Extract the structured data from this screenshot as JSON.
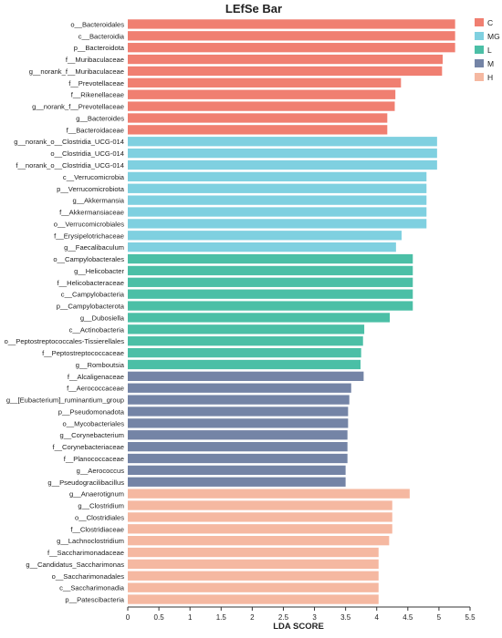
{
  "chart_data": {
    "type": "bar",
    "orientation": "horizontal",
    "title": "LEfSe Bar",
    "xlabel": "LDA SCORE",
    "ylabel": "",
    "xlim": [
      0,
      5.5
    ],
    "xticks": [
      "0",
      "0.5",
      "1",
      "1.5",
      "2",
      "2.5",
      "3",
      "3.5",
      "4",
      "4.5",
      "5",
      "5.5"
    ],
    "legend_position": "top-right",
    "groups": [
      {
        "name": "C",
        "color": "#F07F71"
      },
      {
        "name": "MG",
        "color": "#7FD0E0"
      },
      {
        "name": "L",
        "color": "#4BBFA6"
      },
      {
        "name": "M",
        "color": "#7484A6"
      },
      {
        "name": "H",
        "color": "#F5B8A1"
      }
    ],
    "bars": [
      {
        "label": "o__Bacteroidales",
        "value": 5.26,
        "group": "C"
      },
      {
        "label": "c__Bacteroidia",
        "value": 5.26,
        "group": "C"
      },
      {
        "label": "p__Bacteroidota",
        "value": 5.26,
        "group": "C"
      },
      {
        "label": "f__Muribaculaceae",
        "value": 5.06,
        "group": "C"
      },
      {
        "label": "g__norank_f__Muribaculaceae",
        "value": 5.05,
        "group": "C"
      },
      {
        "label": "f__Prevotellaceae",
        "value": 4.39,
        "group": "C"
      },
      {
        "label": "f__Rikenellaceae",
        "value": 4.3,
        "group": "C"
      },
      {
        "label": "g__norank_f__Prevotellaceae",
        "value": 4.29,
        "group": "C"
      },
      {
        "label": "g__Bacteroides",
        "value": 4.17,
        "group": "C"
      },
      {
        "label": "f__Bacteroidaceae",
        "value": 4.17,
        "group": "C"
      },
      {
        "label": "g__norank_o__Clostridia_UCG-014",
        "value": 4.97,
        "group": "MG"
      },
      {
        "label": "o__Clostridia_UCG-014",
        "value": 4.97,
        "group": "MG"
      },
      {
        "label": "f__norank_o__Clostridia_UCG-014",
        "value": 4.97,
        "group": "MG"
      },
      {
        "label": "c__Verrucomicrobia",
        "value": 4.8,
        "group": "MG"
      },
      {
        "label": "p__Verrucomicrobiota",
        "value": 4.8,
        "group": "MG"
      },
      {
        "label": "g__Akkermansia",
        "value": 4.8,
        "group": "MG"
      },
      {
        "label": "f__Akkermansiaceae",
        "value": 4.8,
        "group": "MG"
      },
      {
        "label": "o__Verrucomicrobiales",
        "value": 4.8,
        "group": "MG"
      },
      {
        "label": "f__Erysipelotrichaceae",
        "value": 4.4,
        "group": "MG"
      },
      {
        "label": "g__Faecalibaculum",
        "value": 4.31,
        "group": "MG"
      },
      {
        "label": "o__Campylobacterales",
        "value": 4.58,
        "group": "L"
      },
      {
        "label": "g__Helicobacter",
        "value": 4.58,
        "group": "L"
      },
      {
        "label": "f__Helicobacteraceae",
        "value": 4.58,
        "group": "L"
      },
      {
        "label": "c__Campylobacteria",
        "value": 4.58,
        "group": "L"
      },
      {
        "label": "p__Campylobacterota",
        "value": 4.58,
        "group": "L"
      },
      {
        "label": "g__Dubosiella",
        "value": 4.21,
        "group": "L"
      },
      {
        "label": "c__Actinobacteria",
        "value": 3.8,
        "group": "L"
      },
      {
        "label": "o__Peptostreptococcales-Tissierellales",
        "value": 3.78,
        "group": "L"
      },
      {
        "label": "f__Peptostreptococcaceae",
        "value": 3.75,
        "group": "L"
      },
      {
        "label": "g__Romboutsia",
        "value": 3.74,
        "group": "L"
      },
      {
        "label": "f__Alcaligenaceae",
        "value": 3.79,
        "group": "M"
      },
      {
        "label": "f__Aerococcaceae",
        "value": 3.59,
        "group": "M"
      },
      {
        "label": "g__[Eubacterium]_ruminantium_group",
        "value": 3.56,
        "group": "M"
      },
      {
        "label": "p__Pseudomonadota",
        "value": 3.54,
        "group": "M"
      },
      {
        "label": "o__Mycobacteriales",
        "value": 3.54,
        "group": "M"
      },
      {
        "label": "g__Corynebacterium",
        "value": 3.53,
        "group": "M"
      },
      {
        "label": "f__Corynebacteriaceae",
        "value": 3.53,
        "group": "M"
      },
      {
        "label": "f__Planococcaceae",
        "value": 3.53,
        "group": "M"
      },
      {
        "label": "g__Aerococcus",
        "value": 3.5,
        "group": "M"
      },
      {
        "label": "g__Pseudogracilibacillus",
        "value": 3.5,
        "group": "M"
      },
      {
        "label": "g__Anaerotignum",
        "value": 4.53,
        "group": "H"
      },
      {
        "label": "g__Clostridium",
        "value": 4.25,
        "group": "H"
      },
      {
        "label": "o__Clostridiales",
        "value": 4.25,
        "group": "H"
      },
      {
        "label": "f__Clostridiaceae",
        "value": 4.25,
        "group": "H"
      },
      {
        "label": "g__Lachnoclostridium",
        "value": 4.2,
        "group": "H"
      },
      {
        "label": "f__Saccharimonadaceae",
        "value": 4.03,
        "group": "H"
      },
      {
        "label": "g__Candidatus_Saccharimonas",
        "value": 4.03,
        "group": "H"
      },
      {
        "label": "o__Saccharimonadales",
        "value": 4.03,
        "group": "H"
      },
      {
        "label": "c__Saccharimonadia",
        "value": 4.03,
        "group": "H"
      },
      {
        "label": "p__Patescibacteria",
        "value": 4.03,
        "group": "H"
      }
    ]
  }
}
